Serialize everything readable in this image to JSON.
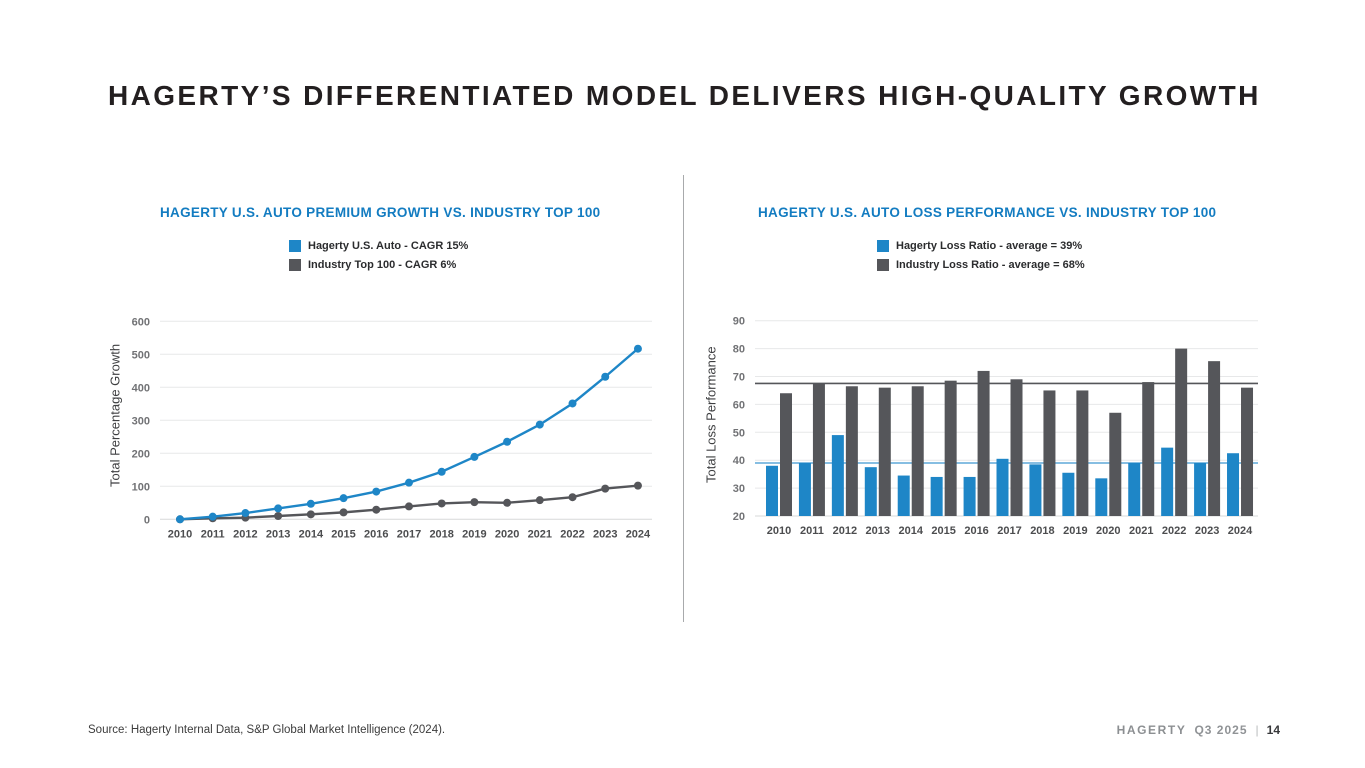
{
  "page": {
    "title": "HAGERTY’S DIFFERENTIATED MODEL DELIVERS HIGH-QUALITY GROWTH",
    "footer_source": "Source: Hagerty Internal Data, S&P Global Market Intelligence (2024).",
    "footer_brand": "HAGERTY",
    "footer_period": "Q3 2025",
    "footer_separator": "|",
    "footer_page": "14"
  },
  "colors": {
    "brand_blue": "#1e86c7",
    "brand_gray": "#55565a",
    "title_blue": "#137cc1",
    "grid": "#e7e8e9",
    "baseline": "#d7d8d9"
  },
  "chart_data": [
    {
      "type": "line",
      "title": "HAGERTY U.S. AUTO PREMIUM GROWTH VS. INDUSTRY TOP 100",
      "ylabel": "Total Percentage Growth",
      "xlabel": "",
      "categories": [
        "2010",
        "2011",
        "2012",
        "2013",
        "2014",
        "2015",
        "2016",
        "2017",
        "2018",
        "2019",
        "2020",
        "2021",
        "2022",
        "2023",
        "2024"
      ],
      "series": [
        {
          "name": "Hagerty U.S. Auto - CAGR 15%",
          "color": "#1e86c7",
          "values": [
            0,
            8,
            19,
            33,
            47,
            64,
            84,
            111,
            144,
            189,
            235,
            287,
            351,
            432,
            517
          ]
        },
        {
          "name": "Industry Top 100 - CAGR 6%",
          "color": "#55565a",
          "values": [
            0,
            3,
            5,
            10,
            15,
            21,
            29,
            39,
            48,
            52,
            50,
            58,
            67,
            93,
            102
          ]
        }
      ],
      "ylim": [
        0,
        600
      ],
      "ytick_step": 100,
      "grid": true,
      "legend_position": "top"
    },
    {
      "type": "bar",
      "title": "HAGERTY U.S. AUTO LOSS PERFORMANCE VS. INDUSTRY TOP 100",
      "ylabel": "Total Loss Performance",
      "xlabel": "",
      "categories": [
        "2010",
        "2011",
        "2012",
        "2013",
        "2014",
        "2015",
        "2016",
        "2017",
        "2018",
        "2019",
        "2020",
        "2021",
        "2022",
        "2023",
        "2024"
      ],
      "series": [
        {
          "name": "Hagerty Loss Ratio - average = 39%",
          "color": "#1e86c7",
          "values": [
            38,
            39,
            49,
            37.5,
            34.5,
            34,
            34,
            40.5,
            38.5,
            35.5,
            33.5,
            39,
            44.5,
            39,
            42.5
          ],
          "average_line": {
            "value": 39,
            "color": "#5fa9d9"
          }
        },
        {
          "name": "Industry Loss Ratio - average = 68%",
          "color": "#55565a",
          "values": [
            64,
            67.5,
            66.5,
            66,
            66.5,
            68.5,
            72,
            69,
            65,
            65,
            57,
            68,
            80,
            75.5,
            66
          ],
          "average_line": {
            "value": 67.5,
            "color": "#55565a"
          }
        }
      ],
      "ylim": [
        20,
        90
      ],
      "ytick_step": 10,
      "grid": true,
      "legend_position": "top"
    }
  ]
}
